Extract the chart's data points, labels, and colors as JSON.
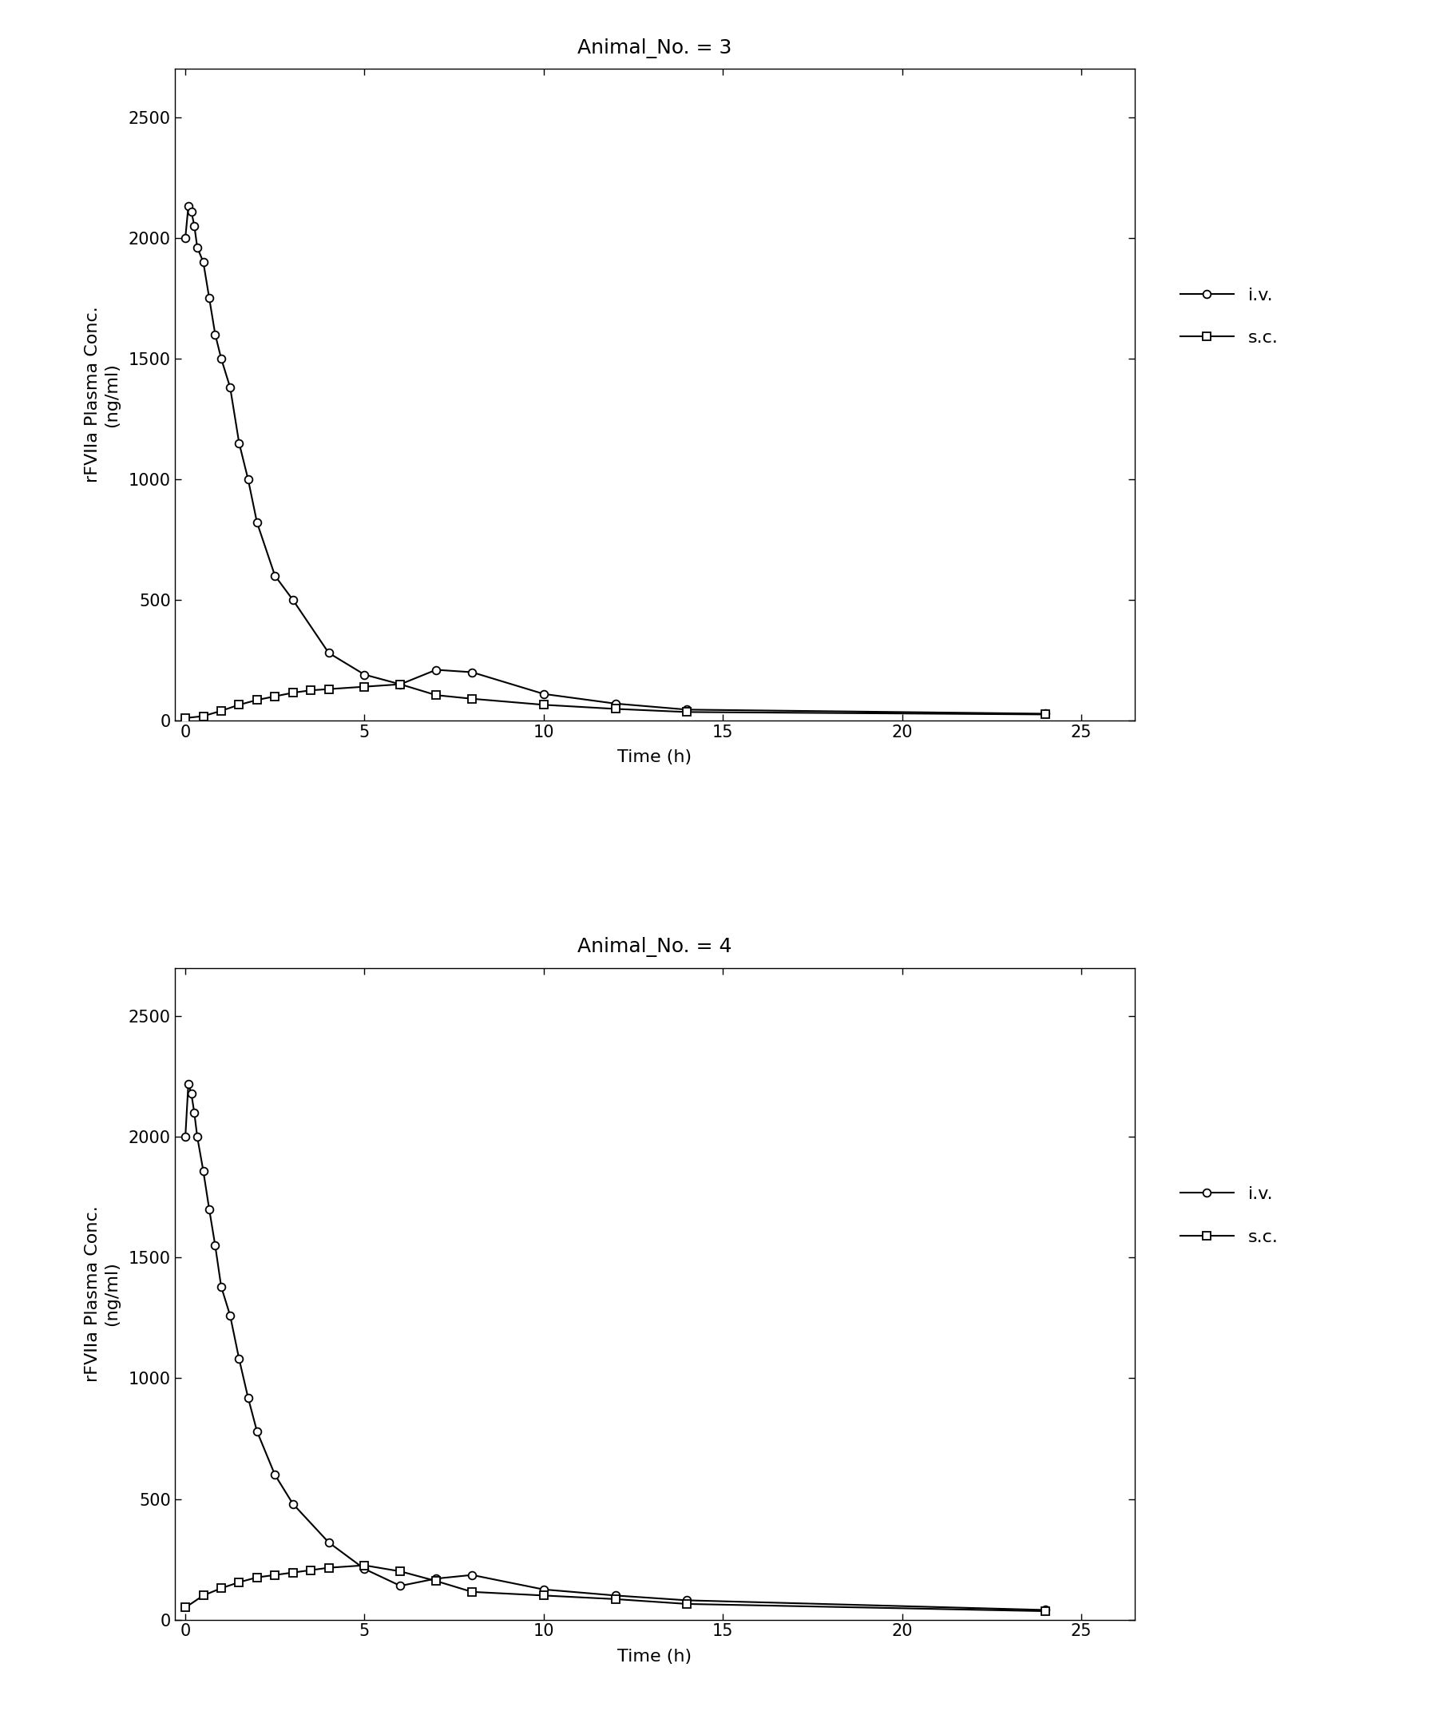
{
  "plots": [
    {
      "title": "Animal_No. = 3",
      "iv_x": [
        0,
        0.083,
        0.167,
        0.25,
        0.333,
        0.5,
        0.667,
        0.833,
        1.0,
        1.25,
        1.5,
        1.75,
        2.0,
        2.5,
        3.0,
        4.0,
        5.0,
        6.0,
        7.0,
        8.0,
        10.0,
        12.0,
        14.0,
        24.0
      ],
      "iv_y": [
        2000,
        2130,
        2110,
        2050,
        1960,
        1900,
        1750,
        1600,
        1500,
        1380,
        1150,
        1000,
        820,
        600,
        500,
        280,
        190,
        150,
        210,
        200,
        110,
        70,
        45,
        28
      ],
      "sc_x": [
        0,
        0.5,
        1.0,
        1.5,
        2.0,
        2.5,
        3.0,
        3.5,
        4.0,
        5.0,
        6.0,
        7.0,
        8.0,
        10.0,
        12.0,
        14.0,
        24.0
      ],
      "sc_y": [
        10,
        18,
        40,
        65,
        85,
        100,
        115,
        125,
        130,
        140,
        150,
        105,
        90,
        65,
        48,
        35,
        25
      ]
    },
    {
      "title": "Animal_No. = 4",
      "iv_x": [
        0,
        0.083,
        0.167,
        0.25,
        0.333,
        0.5,
        0.667,
        0.833,
        1.0,
        1.25,
        1.5,
        1.75,
        2.0,
        2.5,
        3.0,
        4.0,
        5.0,
        6.0,
        7.0,
        8.0,
        10.0,
        12.0,
        14.0,
        24.0
      ],
      "iv_y": [
        2000,
        2220,
        2180,
        2100,
        2000,
        1860,
        1700,
        1550,
        1380,
        1260,
        1080,
        920,
        780,
        600,
        480,
        320,
        210,
        140,
        170,
        185,
        125,
        100,
        80,
        40
      ],
      "sc_x": [
        0,
        0.5,
        1.0,
        1.5,
        2.0,
        2.5,
        3.0,
        3.5,
        4.0,
        5.0,
        6.0,
        7.0,
        8.0,
        10.0,
        12.0,
        14.0,
        24.0
      ],
      "sc_y": [
        50,
        100,
        130,
        155,
        175,
        185,
        195,
        205,
        215,
        225,
        200,
        160,
        115,
        100,
        85,
        65,
        35
      ]
    }
  ],
  "ylabel_line1": "rFVIIa Plasma Conc.",
  "ylabel_line2": "(ng/ml)",
  "xlabel": "Time (h)",
  "ylim": [
    0,
    2700
  ],
  "xlim": [
    -0.3,
    26.5
  ],
  "yticks": [
    0,
    500,
    1000,
    1500,
    2000,
    2500
  ],
  "xticks": [
    0,
    5,
    10,
    15,
    20,
    25
  ],
  "line_color": "#000000",
  "iv_marker": "o",
  "sc_marker": "s",
  "legend_iv": "i.v.",
  "legend_sc": "s.c.",
  "title_fontsize": 18,
  "label_fontsize": 16,
  "tick_fontsize": 15,
  "legend_fontsize": 16,
  "marker_size": 7,
  "line_width": 1.5,
  "background_color": "#ffffff"
}
